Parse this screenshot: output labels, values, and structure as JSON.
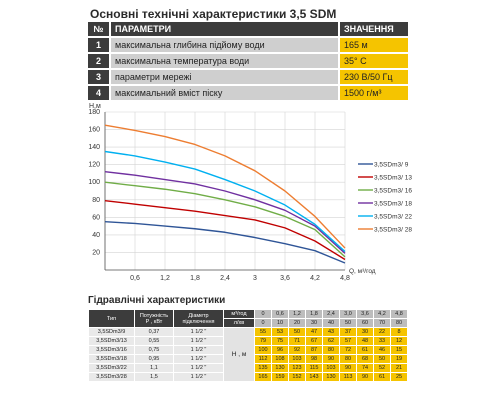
{
  "header": {
    "title": "Основні технічні характеристики 3,5 SDM"
  },
  "spec": {
    "col_num": "№",
    "col_param": "ПАРАМЕТРИ",
    "col_value": "ЗНАЧЕННЯ",
    "rows": [
      {
        "num": "1",
        "param": "максимальна глибина підйому води",
        "value": "165 м"
      },
      {
        "num": "2",
        "param": "максимальна температура води",
        "value": "35° С"
      },
      {
        "num": "3",
        "param": "параметри мережі",
        "value": "230 В/50 Гц"
      },
      {
        "num": "4",
        "param": "максимальний вміст піску",
        "value": "1500 г/м³"
      }
    ]
  },
  "chart_data": {
    "type": "line",
    "xlabel": "Q, м³/год",
    "ylabel": "H,м",
    "xlim": [
      0,
      4.8
    ],
    "ylim": [
      0,
      180
    ],
    "xticks": [
      "0,6",
      "1,2",
      "1,8",
      "2,4",
      "3",
      "3,6",
      "4,2",
      "4,8"
    ],
    "yticks": [
      "20",
      "40",
      "60",
      "80",
      "100",
      "120",
      "140",
      "160",
      "180"
    ],
    "grid": true,
    "legend_position": "right",
    "series": [
      {
        "name": "3,5SDm3/ 9",
        "color": "#2f5597",
        "x": [
          0,
          0.6,
          1.2,
          1.8,
          2.4,
          3.0,
          3.6,
          4.2,
          4.8
        ],
        "y": [
          55,
          53,
          50,
          47,
          43,
          37,
          30,
          22,
          8
        ]
      },
      {
        "name": "3,5SDm3/ 13",
        "color": "#c00000",
        "x": [
          0,
          0.6,
          1.2,
          1.8,
          2.4,
          3.0,
          3.6,
          4.2,
          4.8
        ],
        "y": [
          79,
          75,
          71,
          67,
          62,
          57,
          48,
          33,
          12
        ]
      },
      {
        "name": "3,5SDm3/ 16",
        "color": "#70ad47",
        "x": [
          0,
          0.6,
          1.2,
          1.8,
          2.4,
          3.0,
          3.6,
          4.2,
          4.8
        ],
        "y": [
          100,
          96,
          92,
          87,
          80,
          72,
          61,
          46,
          15
        ]
      },
      {
        "name": "3,5SDm3/ 18",
        "color": "#7030a0",
        "x": [
          0,
          0.6,
          1.2,
          1.8,
          2.4,
          3.0,
          3.6,
          4.2,
          4.8
        ],
        "y": [
          112,
          108,
          103,
          98,
          90,
          80,
          68,
          50,
          19
        ]
      },
      {
        "name": "3,5SDm3/ 22",
        "color": "#00b0f0",
        "x": [
          0,
          0.6,
          1.2,
          1.8,
          2.4,
          3.0,
          3.6,
          4.2,
          4.8
        ],
        "y": [
          135,
          130,
          123,
          115,
          103,
          90,
          74,
          52,
          21
        ]
      },
      {
        "name": "3,5SDm3/ 28",
        "color": "#ed7d31",
        "x": [
          0,
          0.6,
          1.2,
          1.8,
          2.4,
          3.0,
          3.6,
          4.2,
          4.8
        ],
        "y": [
          165,
          159,
          152,
          143,
          130,
          113,
          90,
          61,
          25
        ]
      }
    ]
  },
  "hydraulic": {
    "title": "Гідравлічні характеристики",
    "col_type": "Тип",
    "col_power": "Потужність\nР , кВт",
    "col_diameter": "Діаметр\nпідключення",
    "q_label_m3h": "м³/год",
    "q_label_ls": "л/хв",
    "h_label": "Н , м",
    "q_m3h": [
      "0",
      "0,6",
      "1,2",
      "1,8",
      "2,4",
      "3,0",
      "3,6",
      "4,2",
      "4,8"
    ],
    "q_ls": [
      "0",
      "10",
      "20",
      "30",
      "40",
      "50",
      "60",
      "70",
      "80"
    ],
    "rows": [
      {
        "type": "3,5SDm3/9",
        "power": "0,37",
        "diameter": "1 1/2 \"",
        "h": [
          "55",
          "53",
          "50",
          "47",
          "43",
          "37",
          "30",
          "22",
          "8"
        ]
      },
      {
        "type": "3,5SDm3/13",
        "power": "0,55",
        "diameter": "1 1/2 \"",
        "h": [
          "79",
          "75",
          "71",
          "67",
          "62",
          "57",
          "48",
          "33",
          "12"
        ]
      },
      {
        "type": "3,5SDm3/16",
        "power": "0,75",
        "diameter": "1 1/2 \"",
        "h": [
          "100",
          "96",
          "92",
          "87",
          "80",
          "72",
          "61",
          "46",
          "15"
        ]
      },
      {
        "type": "3,5SDm3/18",
        "power": "0,95",
        "diameter": "1 1/2 \"",
        "h": [
          "112",
          "108",
          "103",
          "98",
          "90",
          "80",
          "68",
          "50",
          "19"
        ]
      },
      {
        "type": "3,5SDm3/22",
        "power": "1,1",
        "diameter": "1 1/2 \"",
        "h": [
          "135",
          "130",
          "123",
          "115",
          "103",
          "90",
          "74",
          "52",
          "21"
        ]
      },
      {
        "type": "3,5SDm3/28",
        "power": "1,5",
        "diameter": "1 1/2 \"",
        "h": [
          "165",
          "159",
          "152",
          "143",
          "130",
          "113",
          "90",
          "61",
          "25"
        ]
      }
    ]
  }
}
